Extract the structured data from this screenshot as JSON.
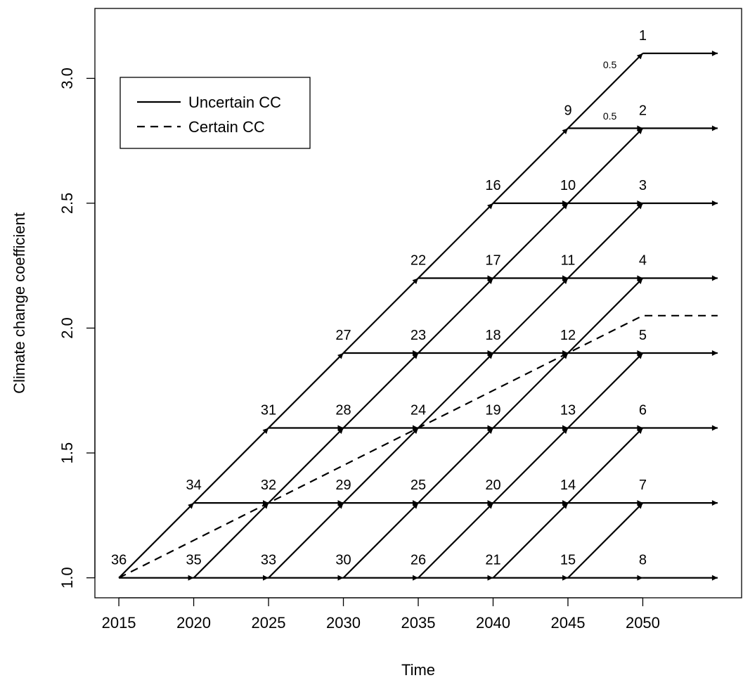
{
  "chart_data": {
    "type": "line",
    "title": "",
    "xlabel": "Time",
    "ylabel": "Climate change coefficient",
    "xlim": [
      2013.4,
      2056.6
    ],
    "ylim": [
      0.92,
      3.28
    ],
    "x_ticks": [
      2015,
      2020,
      2025,
      2030,
      2035,
      2040,
      2045,
      2050
    ],
    "x_tick_labels": [
      "2015",
      "2020",
      "2025",
      "2030",
      "2035",
      "2040",
      "2045",
      "2050"
    ],
    "y_ticks": [
      1.0,
      1.5,
      2.0,
      2.5,
      3.0
    ],
    "y_tick_labels": [
      "1.0",
      "1.5",
      "2.0",
      "2.5",
      "3.0"
    ],
    "grid": false,
    "legend": {
      "position": "top-left",
      "entries": [
        {
          "label": "Uncertain CC",
          "style": "solid"
        },
        {
          "label": "Certain CC",
          "style": "dashed"
        }
      ]
    },
    "nodes": [
      {
        "id": "1",
        "x": 2050,
        "y": 3.1
      },
      {
        "id": "2",
        "x": 2050,
        "y": 2.8
      },
      {
        "id": "3",
        "x": 2050,
        "y": 2.5
      },
      {
        "id": "4",
        "x": 2050,
        "y": 2.2
      },
      {
        "id": "5",
        "x": 2050,
        "y": 1.9
      },
      {
        "id": "6",
        "x": 2050,
        "y": 1.6
      },
      {
        "id": "7",
        "x": 2050,
        "y": 1.3
      },
      {
        "id": "8",
        "x": 2050,
        "y": 1.0
      },
      {
        "id": "9",
        "x": 2045,
        "y": 2.8
      },
      {
        "id": "10",
        "x": 2045,
        "y": 2.5
      },
      {
        "id": "11",
        "x": 2045,
        "y": 2.2
      },
      {
        "id": "12",
        "x": 2045,
        "y": 1.9
      },
      {
        "id": "13",
        "x": 2045,
        "y": 1.6
      },
      {
        "id": "14",
        "x": 2045,
        "y": 1.3
      },
      {
        "id": "15",
        "x": 2045,
        "y": 1.0
      },
      {
        "id": "16",
        "x": 2040,
        "y": 2.5
      },
      {
        "id": "17",
        "x": 2040,
        "y": 2.2
      },
      {
        "id": "18",
        "x": 2040,
        "y": 1.9
      },
      {
        "id": "19",
        "x": 2040,
        "y": 1.6
      },
      {
        "id": "20",
        "x": 2040,
        "y": 1.3
      },
      {
        "id": "21",
        "x": 2040,
        "y": 1.0
      },
      {
        "id": "22",
        "x": 2035,
        "y": 2.2
      },
      {
        "id": "23",
        "x": 2035,
        "y": 1.9
      },
      {
        "id": "24",
        "x": 2035,
        "y": 1.6
      },
      {
        "id": "25",
        "x": 2035,
        "y": 1.3
      },
      {
        "id": "26",
        "x": 2035,
        "y": 1.0
      },
      {
        "id": "27",
        "x": 2030,
        "y": 1.9
      },
      {
        "id": "28",
        "x": 2030,
        "y": 1.6
      },
      {
        "id": "29",
        "x": 2030,
        "y": 1.3
      },
      {
        "id": "30",
        "x": 2030,
        "y": 1.0
      },
      {
        "id": "31",
        "x": 2025,
        "y": 1.6
      },
      {
        "id": "32",
        "x": 2025,
        "y": 1.3
      },
      {
        "id": "33",
        "x": 2025,
        "y": 1.0
      },
      {
        "id": "34",
        "x": 2020,
        "y": 1.3
      },
      {
        "id": "35",
        "x": 2020,
        "y": 1.0
      },
      {
        "id": "36",
        "x": 2015,
        "y": 1.0
      }
    ],
    "tree_step": {
      "dx": 5,
      "dy": 0.3,
      "start_year": 2015,
      "last_decision_year": 2050
    },
    "terminal_arrow_end_x": 2055,
    "probability_labels": [
      {
        "text": "0.5",
        "x": 2047.8,
        "y": 3.04
      },
      {
        "text": "0.5",
        "x": 2047.8,
        "y": 2.835
      }
    ],
    "certain_path": {
      "x": [
        2015,
        2020,
        2025,
        2030,
        2035,
        2040,
        2045,
        2050,
        2055
      ],
      "y": [
        1.0,
        1.15,
        1.3,
        1.45,
        1.6,
        1.75,
        1.9,
        2.05,
        2.05
      ]
    }
  }
}
